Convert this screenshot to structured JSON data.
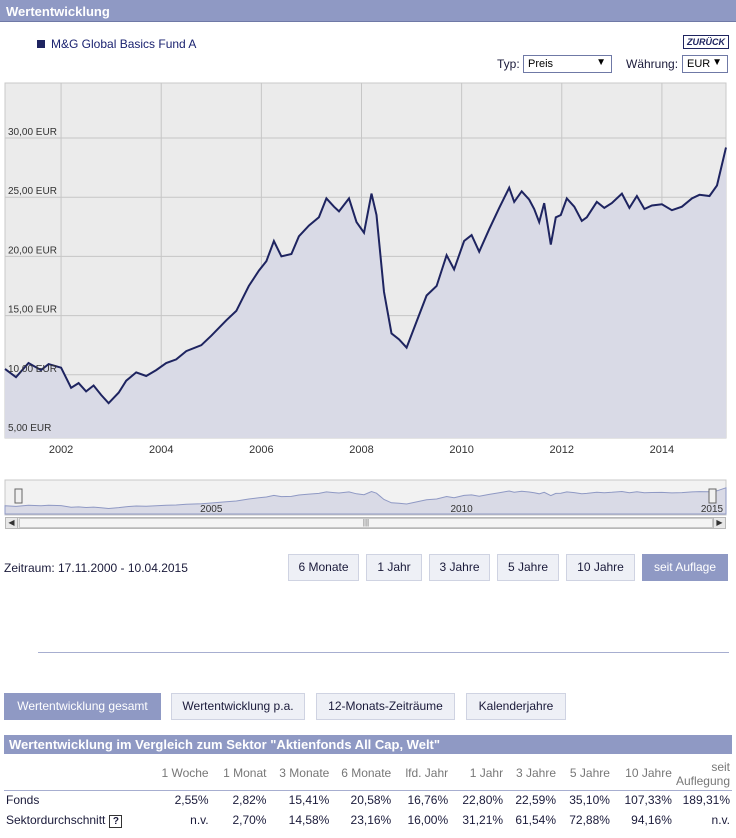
{
  "header": {
    "title": "Wertentwicklung"
  },
  "legend": {
    "fund_name": "M&G Global Basics Fund A"
  },
  "controls": {
    "back_label": "ZURÜCK",
    "typ_label": "Typ:",
    "typ_value": "Preis",
    "waehrung_label": "Währung:",
    "waehrung_value": "EUR"
  },
  "colors": {
    "accent": "#8f99c4",
    "line": "#1e2460",
    "fill": "#d9dae6",
    "plot_bg": "#ebebeb"
  },
  "chart_data": {
    "type": "area",
    "title": "",
    "xlabel": "",
    "ylabel": "",
    "x_tick_labels": [
      "2002",
      "2004",
      "2006",
      "2008",
      "2010",
      "2012",
      "2014"
    ],
    "y_tick_labels": [
      "5,00 EUR",
      "10,00 EUR",
      "15,00 EUR",
      "20,00 EUR",
      "25,00 EUR",
      "30,00 EUR"
    ],
    "y_ticks": [
      5,
      10,
      15,
      20,
      25,
      30
    ],
    "ylim": [
      5,
      30
    ],
    "xlim": [
      2000.88,
      2015.28
    ],
    "grid": true,
    "series": [
      {
        "name": "M&G Global Basics Fund A",
        "x": [
          2000.88,
          2001.1,
          2001.35,
          2001.6,
          2001.75,
          2002.0,
          2002.2,
          2002.35,
          2002.5,
          2002.65,
          2002.8,
          2002.95,
          2003.15,
          2003.3,
          2003.5,
          2003.7,
          2003.9,
          2004.1,
          2004.3,
          2004.5,
          2004.8,
          2005.0,
          2005.3,
          2005.5,
          2005.75,
          2005.95,
          2006.1,
          2006.25,
          2006.4,
          2006.6,
          2006.75,
          2006.95,
          2007.15,
          2007.3,
          2007.45,
          2007.55,
          2007.75,
          2007.9,
          2008.05,
          2008.2,
          2008.3,
          2008.45,
          2008.6,
          2008.75,
          2008.9,
          2009.1,
          2009.3,
          2009.5,
          2009.7,
          2009.85,
          2010.05,
          2010.2,
          2010.35,
          2010.55,
          2010.75,
          2010.95,
          2011.05,
          2011.2,
          2011.35,
          2011.45,
          2011.55,
          2011.65,
          2011.78,
          2011.88,
          2011.98,
          2012.1,
          2012.25,
          2012.4,
          2012.5,
          2012.7,
          2012.85,
          2013.0,
          2013.2,
          2013.35,
          2013.5,
          2013.65,
          2013.8,
          2014.0,
          2014.2,
          2014.4,
          2014.6,
          2014.75,
          2014.95,
          2015.1,
          2015.28
        ],
        "values": [
          10.5,
          9.8,
          11.0,
          10.4,
          10.9,
          10.6,
          8.9,
          9.3,
          8.6,
          9.1,
          8.3,
          7.6,
          8.5,
          9.5,
          10.2,
          9.9,
          10.4,
          11.0,
          11.3,
          12.0,
          12.5,
          13.3,
          14.6,
          15.4,
          17.5,
          18.8,
          19.6,
          21.3,
          20.0,
          20.2,
          21.7,
          22.6,
          23.3,
          24.9,
          24.2,
          23.8,
          24.9,
          22.9,
          22.0,
          25.3,
          23.5,
          17.0,
          13.5,
          13.0,
          12.3,
          14.5,
          16.7,
          17.5,
          20.1,
          18.9,
          21.3,
          21.8,
          20.4,
          22.3,
          24.1,
          25.8,
          24.6,
          25.5,
          24.8,
          24.0,
          22.9,
          24.5,
          21.0,
          23.3,
          23.5,
          24.9,
          24.2,
          23.0,
          23.3,
          24.6,
          24.1,
          24.5,
          25.3,
          24.1,
          25.1,
          24.0,
          24.3,
          24.4,
          23.9,
          24.2,
          24.9,
          25.2,
          25.1,
          26.0,
          29.2
        ]
      }
    ],
    "navigator_tick_labels": [
      "2005",
      "2010",
      "2015"
    ]
  },
  "period": {
    "zeitraum_label": "Zeitraum: 17.11.2000 - 10.04.2015",
    "buttons": [
      "6 Monate",
      "1 Jahr",
      "3 Jahre",
      "5 Jahre",
      "10 Jahre",
      "seit Auflage"
    ]
  },
  "tabs": [
    "Wertentwicklung gesamt",
    "Wertentwicklung p.a.",
    "12-Monats-Zeiträume",
    "Kalenderjahre"
  ],
  "comparison": {
    "title": "Wertentwicklung im Vergleich zum Sektor \"Aktienfonds All Cap, Welt\"",
    "columns": [
      "1 Woche",
      "1 Monat",
      "3 Monate",
      "6 Monate",
      "lfd. Jahr",
      "1 Jahr",
      "3 Jahre",
      "5 Jahre",
      "10 Jahre"
    ],
    "last_col_line1": "seit",
    "last_col_line2": "Auflegung",
    "rows": [
      {
        "label": "Fonds",
        "values": [
          "2,55%",
          "2,82%",
          "15,41%",
          "20,58%",
          "16,76%",
          "22,80%",
          "22,59%",
          "35,10%",
          "107,33%",
          "189,31%"
        ]
      },
      {
        "label": "Sektordurchschnitt",
        "values": [
          "n.v.",
          "2,70%",
          "14,58%",
          "23,16%",
          "16,00%",
          "31,21%",
          "61,54%",
          "72,88%",
          "94,16%",
          "n.v."
        ]
      }
    ]
  }
}
